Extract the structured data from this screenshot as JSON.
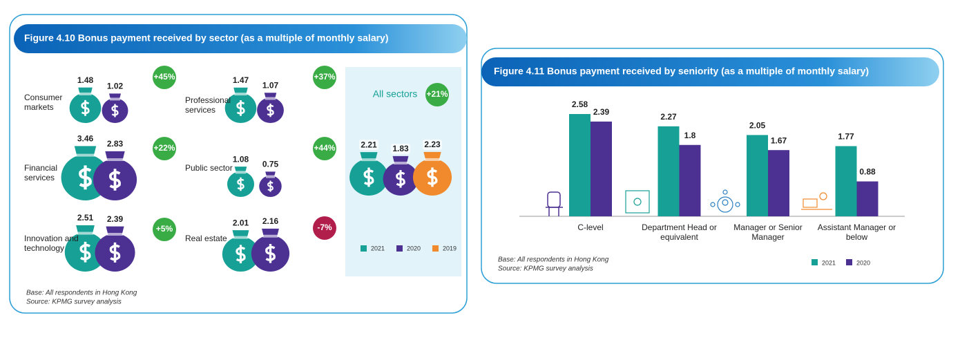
{
  "chart_data": [
    {
      "type": "bag",
      "title": "Figure 4.10 Bonus payment received by sector (as a multiple of monthly salary)",
      "categories": [
        "Consumer markets",
        "Financial services",
        "Innovation and technology",
        "Professional services",
        "Public sector",
        "Real estate",
        "All sectors"
      ],
      "series": [
        {
          "name": "2021",
          "color": "#17a196",
          "values": [
            1.48,
            3.46,
            2.51,
            1.47,
            1.08,
            2.01,
            2.21
          ]
        },
        {
          "name": "2020",
          "color": "#4c3193",
          "values": [
            1.02,
            2.83,
            2.39,
            1.07,
            0.75,
            2.16,
            1.83
          ]
        },
        {
          "name": "2019",
          "color": "#f08a2c",
          "values": [
            null,
            null,
            null,
            null,
            null,
            null,
            2.23
          ]
        }
      ],
      "change": {
        "values": [
          45,
          22,
          5,
          37,
          44,
          -7,
          21
        ],
        "value_labels": [
          "+45%",
          "+22%",
          "+5%",
          "+37%",
          "+44%",
          "-7%",
          "+21%"
        ]
      },
      "notes": [
        "Base: All respondents in Hong Kong",
        "Source: KPMG survey analysis"
      ]
    },
    {
      "type": "bar",
      "title": "Figure 4.11 Bonus payment received by seniority (as a multiple of monthly salary)",
      "categories": [
        "C-level",
        "Department Head or equivalent",
        "Manager or Senior Manager",
        "Assistant Manager or below"
      ],
      "series": [
        {
          "name": "2021",
          "color": "#17a196",
          "values": [
            2.58,
            2.27,
            2.05,
            1.77
          ]
        },
        {
          "name": "2020",
          "color": "#4c3193",
          "values": [
            2.39,
            1.8,
            1.67,
            0.88
          ]
        }
      ],
      "notes": [
        "Base: All respondents in Hong Kong",
        "Source: KPMG survey analysis"
      ]
    }
  ]
}
